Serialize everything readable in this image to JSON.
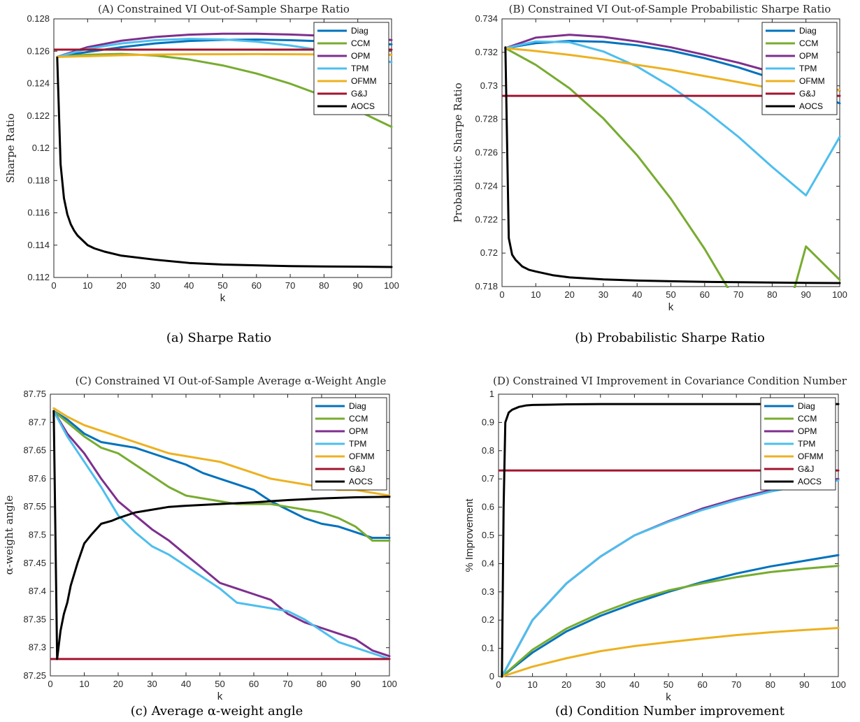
{
  "colors": {
    "Diag": "#0072BD",
    "CCM": "#77AC30",
    "OPM": "#7E2F8E",
    "TPM": "#4DBEEE",
    "OFMM": "#EDB120",
    "G&J": "#A2142F",
    "AOCS": "#000000"
  },
  "chart_data": [
    {
      "type": "line",
      "title": "(A) Constrained VI Out-of-Sample Sharpe Ratio",
      "caption": "(a) Sharpe Ratio",
      "xlabel": "k",
      "ylabel": "Sharpe Ratio",
      "xlim": [
        0,
        100
      ],
      "ylim": [
        0.112,
        0.128
      ],
      "xticks": [
        0,
        10,
        20,
        30,
        40,
        50,
        60,
        70,
        80,
        90,
        100
      ],
      "yticks": [
        0.112,
        0.114,
        0.116,
        0.118,
        0.12,
        0.122,
        0.124,
        0.126,
        0.128
      ],
      "ytick_labels": [
        "0.112",
        "0.114",
        "0.116",
        "0.118",
        "0.12",
        "0.122",
        "0.124",
        "0.126",
        "0.128"
      ],
      "legend": [
        "Diag",
        "CCM",
        "OPM",
        "TPM",
        "OFMM",
        "G&J",
        "AOCS"
      ],
      "legend_position": "top-right",
      "series": [
        {
          "name": "Diag",
          "x": [
            1,
            10,
            20,
            30,
            40,
            50,
            60,
            70,
            80,
            90,
            100
          ],
          "y": [
            0.12565,
            0.12595,
            0.12625,
            0.12648,
            0.12663,
            0.1267,
            0.12672,
            0.12668,
            0.12661,
            0.12652,
            0.12642
          ]
        },
        {
          "name": "CCM",
          "x": [
            1,
            10,
            20,
            30,
            40,
            50,
            60,
            70,
            80,
            90,
            100
          ],
          "y": [
            0.12565,
            0.12578,
            0.12583,
            0.12573,
            0.12549,
            0.12512,
            0.12462,
            0.12399,
            0.12322,
            0.12232,
            0.12132
          ]
        },
        {
          "name": "OPM",
          "x": [
            1,
            10,
            20,
            30,
            40,
            50,
            60,
            70,
            80,
            90,
            100
          ],
          "y": [
            0.12565,
            0.12625,
            0.12665,
            0.12688,
            0.12702,
            0.12708,
            0.12708,
            0.12703,
            0.12695,
            0.12684,
            0.12669
          ]
        },
        {
          "name": "TPM",
          "x": [
            1,
            10,
            20,
            30,
            40,
            50,
            60,
            70,
            80,
            90,
            100
          ],
          "y": [
            0.12565,
            0.12615,
            0.12648,
            0.12668,
            0.12676,
            0.12673,
            0.12659,
            0.12635,
            0.12603,
            0.12569,
            0.12532
          ]
        },
        {
          "name": "OFMM",
          "x": [
            1,
            10,
            20,
            30,
            40,
            50,
            60,
            70,
            80,
            90,
            100
          ],
          "y": [
            0.12565,
            0.12569,
            0.12575,
            0.12579,
            0.12581,
            0.12581,
            0.12582,
            0.12581,
            0.1258,
            0.12579,
            0.12578
          ]
        },
        {
          "name": "G&J",
          "x": [
            0,
            100
          ],
          "y": [
            0.1261,
            0.1261
          ]
        },
        {
          "name": "AOCS",
          "x": [
            1,
            2,
            3,
            4,
            5,
            6,
            7,
            8,
            10,
            12,
            15,
            20,
            30,
            40,
            50,
            60,
            70,
            80,
            90,
            100
          ],
          "y": [
            0.1256,
            0.119,
            0.1169,
            0.1159,
            0.1153,
            0.1149,
            0.1146,
            0.1144,
            0.114,
            0.1138,
            0.1136,
            0.11335,
            0.1131,
            0.1129,
            0.1128,
            0.11275,
            0.1127,
            0.11268,
            0.11267,
            0.11265
          ]
        }
      ]
    },
    {
      "type": "line",
      "title": "(B) Constrained VI Out-of-Sample Probabilistic Sharpe Ratio",
      "caption": "(b) Probabilistic Sharpe Ratio",
      "xlabel": "k",
      "ylabel": "Probabilistic Sharpe Ratio",
      "xlim": [
        0,
        100
      ],
      "ylim": [
        0.718,
        0.734
      ],
      "xticks": [
        0,
        10,
        20,
        30,
        40,
        50,
        60,
        70,
        80,
        90,
        100
      ],
      "yticks": [
        0.718,
        0.72,
        0.722,
        0.724,
        0.726,
        0.728,
        0.73,
        0.732,
        0.734
      ],
      "ytick_labels": [
        "0.718",
        "0.72",
        "0.722",
        "0.724",
        "0.726",
        "0.728",
        "0.73",
        "0.732",
        "0.734"
      ],
      "legend": [
        "Diag",
        "CCM",
        "OPM",
        "TPM",
        "OFMM",
        "G&J",
        "AOCS"
      ],
      "legend_position": "top-right",
      "series": [
        {
          "name": "Diag",
          "x": [
            1,
            10,
            20,
            30,
            40,
            50,
            60,
            70,
            80,
            90,
            100
          ],
          "y": [
            0.73225,
            0.73255,
            0.73268,
            0.73263,
            0.73242,
            0.7321,
            0.73165,
            0.7311,
            0.73045,
            0.72975,
            0.72895
          ]
        },
        {
          "name": "CCM",
          "x": [
            1,
            10,
            20,
            30,
            40,
            50,
            60,
            70,
            80,
            90,
            100
          ],
          "y": [
            0.73225,
            0.73125,
            0.72985,
            0.72805,
            0.72585,
            0.72325,
            0.72025,
            0.71685,
            0.71305,
            0.7204,
            0.7184
          ]
        },
        {
          "name": "OPM",
          "x": [
            1,
            10,
            20,
            30,
            40,
            50,
            60,
            70,
            80,
            90,
            100
          ],
          "y": [
            0.73225,
            0.73288,
            0.73305,
            0.73292,
            0.73265,
            0.7323,
            0.73185,
            0.73138,
            0.73082,
            0.73028,
            0.72972
          ]
        },
        {
          "name": "TPM",
          "x": [
            1,
            10,
            20,
            30,
            40,
            50,
            60,
            70,
            80,
            90,
            100
          ],
          "y": [
            0.73225,
            0.73265,
            0.7326,
            0.73205,
            0.73115,
            0.72995,
            0.72855,
            0.72695,
            0.72515,
            0.72345,
            0.72695
          ]
        },
        {
          "name": "OFMM",
          "x": [
            1,
            10,
            20,
            30,
            40,
            50,
            60,
            70,
            80,
            90,
            100
          ],
          "y": [
            0.73225,
            0.73208,
            0.73185,
            0.73158,
            0.73125,
            0.73095,
            0.73058,
            0.73022,
            0.72985,
            0.72948,
            0.72975
          ]
        },
        {
          "name": "G&J",
          "x": [
            0,
            100
          ],
          "y": [
            0.7294,
            0.7294
          ]
        },
        {
          "name": "AOCS",
          "x": [
            1,
            2,
            3,
            4,
            5,
            6,
            8,
            10,
            15,
            20,
            30,
            40,
            50,
            60,
            70,
            80,
            90,
            100
          ],
          "y": [
            0.7323,
            0.7209,
            0.7199,
            0.7196,
            0.7194,
            0.7192,
            0.719,
            0.7189,
            0.71868,
            0.71855,
            0.71843,
            0.71836,
            0.71832,
            0.71828,
            0.71826,
            0.71824,
            0.71822,
            0.71821
          ]
        }
      ]
    },
    {
      "type": "line",
      "title": "(C) Constrained VI Out-of-Sample Average α-Weight Angle",
      "caption": "(c) Average α-weight angle",
      "xlabel": "k",
      "ylabel": "α-weight angle",
      "xlim": [
        0,
        100
      ],
      "ylim": [
        87.25,
        87.75
      ],
      "xticks": [
        0,
        10,
        20,
        30,
        40,
        50,
        60,
        70,
        80,
        90,
        100
      ],
      "yticks": [
        87.25,
        87.3,
        87.35,
        87.4,
        87.45,
        87.5,
        87.55,
        87.6,
        87.65,
        87.7,
        87.75
      ],
      "ytick_labels": [
        "87.25",
        "87.3",
        "87.35",
        "87.4",
        "87.45",
        "87.5",
        "87.55",
        "87.6",
        "87.65",
        "87.7",
        "87.75"
      ],
      "legend": [
        "Diag",
        "CCM",
        "OPM",
        "TPM",
        "OFMM",
        "G&J",
        "AOCS"
      ],
      "legend_position": "top-right",
      "series": [
        {
          "name": "Diag",
          "x": [
            1,
            5,
            10,
            15,
            20,
            25,
            30,
            35,
            40,
            45,
            50,
            55,
            60,
            65,
            70,
            75,
            80,
            85,
            90,
            95,
            100
          ],
          "y": [
            87.72,
            87.705,
            87.68,
            87.665,
            87.66,
            87.655,
            87.645,
            87.635,
            87.625,
            87.61,
            87.6,
            87.59,
            87.58,
            87.56,
            87.545,
            87.53,
            87.52,
            87.515,
            87.505,
            87.495,
            87.495
          ]
        },
        {
          "name": "CCM",
          "x": [
            1,
            5,
            10,
            15,
            20,
            25,
            30,
            35,
            40,
            45,
            50,
            55,
            60,
            65,
            70,
            75,
            80,
            85,
            90,
            95,
            100
          ],
          "y": [
            87.72,
            87.7,
            87.675,
            87.655,
            87.645,
            87.625,
            87.605,
            87.585,
            87.57,
            87.565,
            87.56,
            87.555,
            87.555,
            87.555,
            87.55,
            87.545,
            87.54,
            87.53,
            87.515,
            87.49,
            87.49
          ]
        },
        {
          "name": "OPM",
          "x": [
            1,
            5,
            10,
            15,
            20,
            25,
            30,
            35,
            40,
            45,
            50,
            55,
            60,
            65,
            70,
            75,
            80,
            85,
            90,
            95,
            100
          ],
          "y": [
            87.72,
            87.68,
            87.645,
            87.6,
            87.56,
            87.535,
            87.51,
            87.49,
            87.465,
            87.44,
            87.415,
            87.405,
            87.395,
            87.385,
            87.36,
            87.345,
            87.335,
            87.325,
            87.315,
            87.295,
            87.285
          ]
        },
        {
          "name": "TPM",
          "x": [
            1,
            5,
            10,
            15,
            20,
            25,
            30,
            35,
            40,
            45,
            50,
            55,
            60,
            65,
            70,
            75,
            80,
            85,
            90,
            95,
            100
          ],
          "y": [
            87.72,
            87.675,
            87.63,
            87.585,
            87.535,
            87.505,
            87.48,
            87.465,
            87.445,
            87.425,
            87.405,
            87.38,
            87.375,
            87.37,
            87.365,
            87.35,
            87.33,
            87.31,
            87.3,
            87.29,
            87.28
          ]
        },
        {
          "name": "OFMM",
          "x": [
            1,
            5,
            10,
            15,
            20,
            25,
            30,
            35,
            40,
            45,
            50,
            55,
            60,
            65,
            70,
            75,
            80,
            85,
            90,
            95,
            100
          ],
          "y": [
            87.725,
            87.71,
            87.695,
            87.685,
            87.675,
            87.665,
            87.655,
            87.645,
            87.64,
            87.635,
            87.63,
            87.62,
            87.61,
            87.6,
            87.595,
            87.59,
            87.585,
            87.58,
            87.58,
            87.575,
            87.57
          ]
        },
        {
          "name": "G&J",
          "x": [
            0,
            100
          ],
          "y": [
            87.28,
            87.28
          ]
        },
        {
          "name": "AOCS",
          "x": [
            1,
            2,
            3,
            4,
            5,
            6,
            8,
            10,
            12,
            15,
            18,
            20,
            25,
            30,
            35,
            40,
            50,
            60,
            70,
            80,
            90,
            100
          ],
          "y": [
            87.72,
            87.28,
            87.33,
            87.36,
            87.38,
            87.41,
            87.45,
            87.485,
            87.5,
            87.52,
            87.525,
            87.53,
            87.54,
            87.545,
            87.55,
            87.552,
            87.555,
            87.558,
            87.562,
            87.565,
            87.567,
            87.568
          ]
        }
      ]
    },
    {
      "type": "line",
      "title": "(D) Constrained VI Improvement in Covariance Condition Number",
      "caption": "(d) Condition Number improvement",
      "xlabel": "k",
      "ylabel": "% Improvement",
      "xlim": [
        0,
        100
      ],
      "ylim": [
        0,
        1
      ],
      "xticks": [
        0,
        10,
        20,
        30,
        40,
        50,
        60,
        70,
        80,
        90,
        100
      ],
      "yticks": [
        0,
        0.1,
        0.2,
        0.3,
        0.4,
        0.5,
        0.6,
        0.7,
        0.8,
        0.9,
        1
      ],
      "ytick_labels": [
        "0",
        "0.1",
        "0.2",
        "0.3",
        "0.4",
        "0.5",
        "0.6",
        "0.7",
        "0.8",
        "0.9",
        "1"
      ],
      "legend": [
        "Diag",
        "CCM",
        "OPM",
        "TPM",
        "OFMM",
        "G&J",
        "AOCS"
      ],
      "legend_position": "top-right",
      "series": [
        {
          "name": "Diag",
          "x": [
            1,
            10,
            20,
            30,
            40,
            50,
            60,
            70,
            80,
            90,
            100
          ],
          "y": [
            0,
            0.085,
            0.16,
            0.215,
            0.26,
            0.3,
            0.335,
            0.365,
            0.39,
            0.41,
            0.43
          ]
        },
        {
          "name": "CCM",
          "x": [
            1,
            10,
            20,
            30,
            40,
            50,
            60,
            70,
            80,
            90,
            100
          ],
          "y": [
            0,
            0.095,
            0.17,
            0.225,
            0.27,
            0.305,
            0.33,
            0.352,
            0.37,
            0.382,
            0.392
          ]
        },
        {
          "name": "OPM",
          "x": [
            1,
            10,
            20,
            30,
            40,
            50,
            60,
            70,
            80,
            90,
            100
          ],
          "y": [
            0,
            0.2,
            0.33,
            0.425,
            0.5,
            0.55,
            0.595,
            0.63,
            0.66,
            0.685,
            0.7
          ]
        },
        {
          "name": "TPM",
          "x": [
            1,
            10,
            20,
            30,
            40,
            50,
            60,
            70,
            80,
            90,
            100
          ],
          "y": [
            0,
            0.2,
            0.33,
            0.425,
            0.5,
            0.548,
            0.59,
            0.625,
            0.655,
            0.678,
            0.695
          ]
        },
        {
          "name": "OFMM",
          "x": [
            1,
            10,
            20,
            30,
            40,
            50,
            60,
            70,
            80,
            90,
            100
          ],
          "y": [
            0,
            0.035,
            0.065,
            0.09,
            0.108,
            0.122,
            0.135,
            0.147,
            0.157,
            0.165,
            0.172
          ]
        },
        {
          "name": "G&J",
          "x": [
            0,
            100
          ],
          "y": [
            0.73,
            0.73
          ]
        },
        {
          "name": "AOCS",
          "x": [
            1,
            1.5,
            2,
            3,
            4,
            6,
            8,
            10,
            15,
            20,
            30,
            40,
            50,
            60,
            70,
            80,
            90,
            100
          ],
          "y": [
            0,
            0.6,
            0.9,
            0.935,
            0.945,
            0.955,
            0.96,
            0.962,
            0.963,
            0.964,
            0.965,
            0.965,
            0.965,
            0.965,
            0.965,
            0.965,
            0.965,
            0.965
          ]
        }
      ]
    }
  ]
}
